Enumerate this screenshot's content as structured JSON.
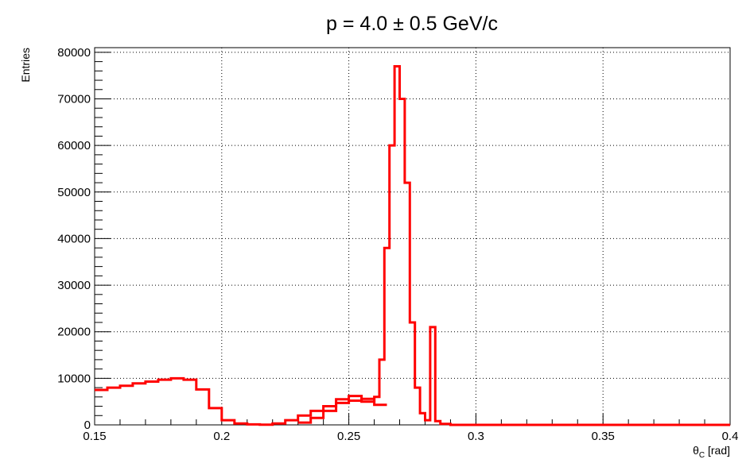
{
  "chart_data": {
    "type": "line",
    "title": "p = 4.0 ± 0.5 GeV/c",
    "xlabel": "θ",
    "xlabel_sub": "C",
    "xlabel_unit": "[rad]",
    "ylabel": "Entries",
    "xlim": [
      0.15,
      0.4
    ],
    "ylim": [
      0,
      81000
    ],
    "xticks": [
      0.15,
      0.2,
      0.25,
      0.3,
      0.35,
      0.4
    ],
    "xtick_labels": [
      "0.15",
      "0.2",
      "0.25",
      "0.3",
      "0.35",
      "0.4"
    ],
    "yticks": [
      0,
      10000,
      20000,
      30000,
      40000,
      50000,
      60000,
      70000,
      80000
    ],
    "ytick_labels": [
      "0",
      "10000",
      "20000",
      "30000",
      "40000",
      "50000",
      "60000",
      "70000",
      "80000"
    ],
    "grid": true,
    "line_color": "#ff0000",
    "series": [
      {
        "x": [
          0.15,
          0.155,
          0.16,
          0.165,
          0.17,
          0.175,
          0.18,
          0.185,
          0.19,
          0.195,
          0.2,
          0.205,
          0.21,
          0.215,
          0.22,
          0.225,
          0.23,
          0.235,
          0.24,
          0.245,
          0.25,
          0.255,
          0.26
        ],
        "values": [
          7500,
          8000,
          8400,
          8900,
          9300,
          9700,
          10000,
          9700,
          7600,
          3600,
          1000,
          300,
          100,
          50,
          300,
          1000,
          2000,
          3000,
          4000,
          4700,
          5200,
          5600,
          4300
        ]
      },
      {
        "x": [
          0.23,
          0.235,
          0.24,
          0.245,
          0.25,
          0.255,
          0.26,
          0.262,
          0.264,
          0.266,
          0.268,
          0.27,
          0.272,
          0.274,
          0.276,
          0.278,
          0.28,
          0.282,
          0.284,
          0.286,
          0.29
        ],
        "values": [
          500,
          1500,
          3000,
          5500,
          6200,
          5000,
          6000,
          14000,
          38000,
          60000,
          77000,
          70000,
          52000,
          22000,
          8000,
          2500,
          1000,
          21000,
          800,
          200,
          0
        ]
      }
    ]
  }
}
